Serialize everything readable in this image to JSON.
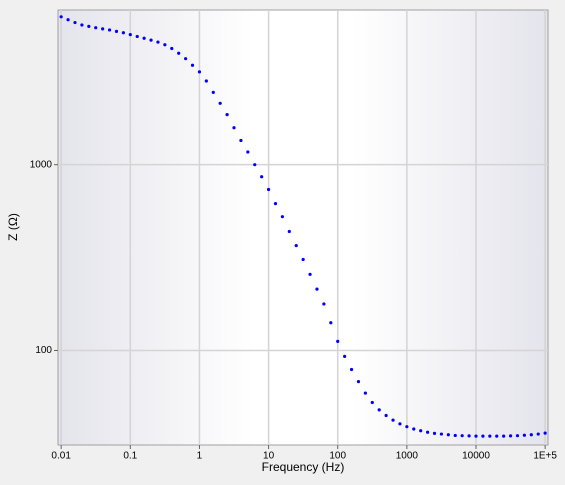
{
  "chart_data": {
    "type": "scatter",
    "xlabel": "Frequency (Hz)",
    "ylabel": "Z (Ω)",
    "xscale": "log",
    "yscale": "log",
    "grid": true,
    "color": "#0000ff",
    "xlim": [
      0.009,
      110000
    ],
    "ylim": [
      31,
      6800
    ],
    "xticks": [
      0.01,
      0.1,
      1,
      10,
      100,
      1000,
      10000,
      {
        "value": 100000,
        "label": "1E+5"
      }
    ],
    "yticks": [
      100,
      1000
    ],
    "x": [
      0.01,
      0.01259,
      0.01585,
      0.01995,
      0.02512,
      0.03162,
      0.03981,
      0.05012,
      0.0631,
      0.07943,
      0.1,
      0.1259,
      0.1585,
      0.1995,
      0.2512,
      0.3162,
      0.3981,
      0.5012,
      0.631,
      0.7943,
      1,
      1.259,
      1.585,
      1.995,
      2.512,
      3.162,
      3.981,
      5.012,
      6.31,
      7.943,
      10,
      12.59,
      15.85,
      19.95,
      25.12,
      31.62,
      39.81,
      50.12,
      63.1,
      79.43,
      100,
      125.9,
      158.5,
      199.5,
      251.2,
      316.2,
      398.1,
      501.2,
      631,
      794.3,
      1000,
      1259,
      1585,
      1995,
      2512,
      3162,
      3981,
      5012,
      6310,
      7943,
      10000,
      12589,
      15849,
      19953,
      25119,
      31623,
      39811,
      50119,
      63096,
      79433,
      100000
    ],
    "values": [
      6250,
      6030,
      5820,
      5650,
      5550,
      5460,
      5380,
      5310,
      5220,
      5130,
      5010,
      4900,
      4790,
      4680,
      4570,
      4420,
      4220,
      3980,
      3720,
      3430,
      3160,
      2820,
      2450,
      2140,
      1860,
      1580,
      1350,
      1170,
      1000,
      861,
      735,
      617,
      525,
      437,
      367,
      309,
      257,
      214,
      178,
      141,
      112,
      93,
      79,
      68,
      59,
      52.5,
      47.9,
      44.7,
      42.2,
      40.3,
      38.9,
      37.8,
      37,
      36.3,
      35.8,
      35.5,
      35.2,
      34.9,
      34.8,
      34.7,
      34.6,
      34.6,
      34.6,
      34.6,
      34.6,
      34.7,
      34.8,
      35,
      35.2,
      35.5,
      35.9
    ]
  }
}
